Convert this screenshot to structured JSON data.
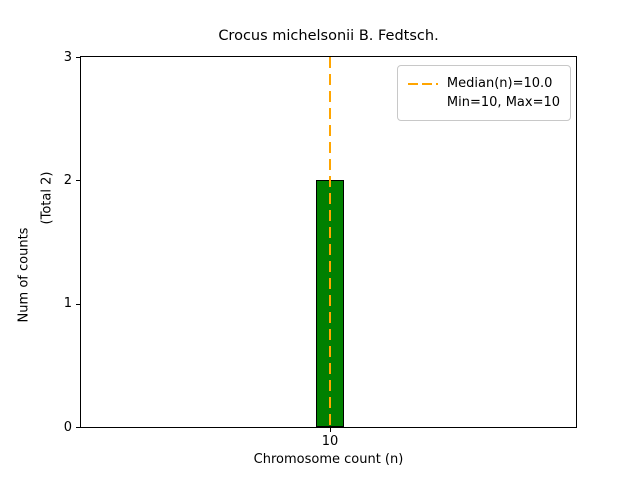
{
  "figure": {
    "title": "Crocus michelsonii B. Fedtsch.",
    "xlabel": "Chromosome count (n)",
    "ylabel": "Num of counts",
    "total_label": "(Total 2)",
    "legend": {
      "median_label": "Median(n)=10.0",
      "minmax_label": "Min=10, Max=10"
    }
  },
  "chart_data": {
    "type": "bar",
    "title": "Crocus michelsonii B. Fedtsch.",
    "xlabel": "Chromosome count (n)",
    "ylabel": "Num of counts (Total 2)",
    "categories": [
      "10"
    ],
    "values": [
      2
    ],
    "total_counts": 2,
    "ylim": [
      0,
      3
    ],
    "y_ticks": [
      0,
      1,
      2,
      3
    ],
    "median_n": 10.0,
    "min_n": 10,
    "max_n": 10,
    "legend_entries": [
      "Median(n)=10.0",
      "Min=10, Max=10"
    ],
    "legend_position": "upper right",
    "grid": false,
    "bar_color": "#008000",
    "bar_edge_color": "#000000",
    "median_line_color": "#FFA500",
    "median_line_style": "dashed"
  }
}
